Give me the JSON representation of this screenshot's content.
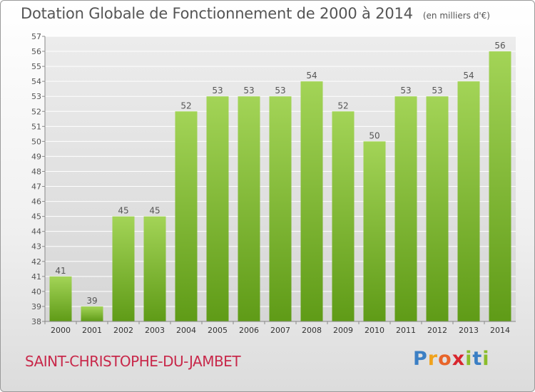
{
  "header": {
    "title": "Dotation Globale de Fonctionnement de 2000 à 2014",
    "unit_note": "(en milliers d'€)"
  },
  "footer": {
    "town": "SAINT-CHRISTOPHE-DU-JAMBET",
    "logo_letters": [
      "P",
      "r",
      "o",
      "x",
      "i",
      "t",
      "i"
    ]
  },
  "colors": {
    "bar_top": "#a3d457",
    "bar_bottom": "#5f9b17",
    "town": "#c8284a",
    "title": "#555555"
  },
  "chart_data": {
    "type": "bar",
    "title": "Dotation Globale de Fonctionnement de 2000 à 2014",
    "subtitle": "(en milliers d'€)",
    "xlabel": "",
    "ylabel": "",
    "ylim": [
      38,
      57
    ],
    "yticks": [
      38,
      39,
      40,
      41,
      42,
      43,
      44,
      45,
      46,
      47,
      48,
      49,
      50,
      51,
      52,
      53,
      54,
      55,
      56,
      57
    ],
    "grid": true,
    "categories": [
      "2000",
      "2001",
      "2002",
      "2003",
      "2004",
      "2005",
      "2006",
      "2007",
      "2008",
      "2009",
      "2010",
      "2011",
      "2012",
      "2013",
      "2014"
    ],
    "values": [
      41,
      39,
      45,
      45,
      52,
      53,
      53,
      53,
      54,
      52,
      50,
      53,
      53,
      54,
      56
    ]
  }
}
